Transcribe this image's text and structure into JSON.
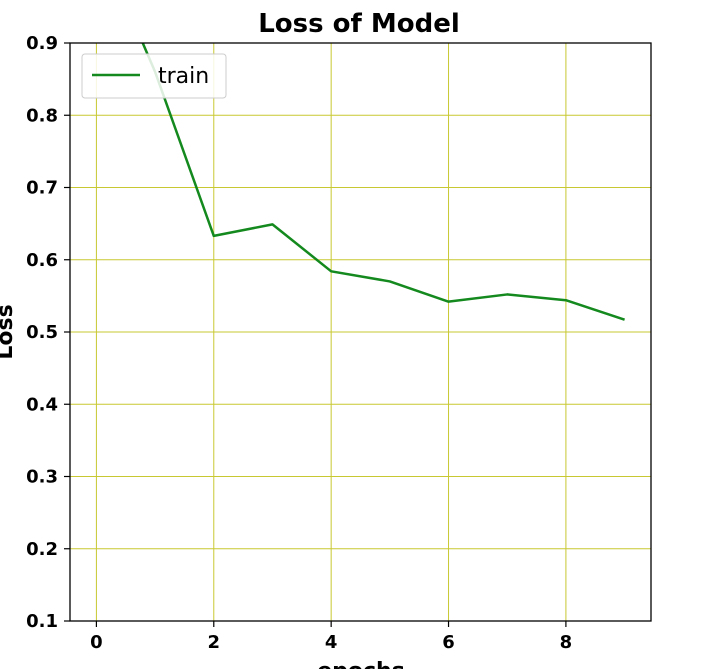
{
  "chart_data": {
    "type": "line",
    "title": "Loss of Model",
    "xlabel": "epochs",
    "ylabel": "Loss",
    "xlim": [
      -0.45,
      9.45
    ],
    "ylim": [
      0.1,
      0.9
    ],
    "xticks": [
      "0",
      "2",
      "4",
      "6",
      "8"
    ],
    "xtick_values": [
      0,
      2,
      4,
      6,
      8
    ],
    "yticks": [
      "0.1",
      "0.2",
      "0.3",
      "0.4",
      "0.5",
      "0.6",
      "0.7",
      "0.8",
      "0.9"
    ],
    "ytick_values": [
      0.1,
      0.2,
      0.3,
      0.4,
      0.5,
      0.6,
      0.7,
      0.8,
      0.9
    ],
    "grid": true,
    "grid_color": "#c8c832",
    "legend_position": "top-left",
    "series": [
      {
        "name": "train",
        "color": "#14891e",
        "x": [
          0,
          1,
          2,
          3,
          4,
          5,
          6,
          7,
          8,
          9
        ],
        "y": [
          1.05,
          0.86,
          0.633,
          0.649,
          0.584,
          0.57,
          0.542,
          0.552,
          0.544,
          0.517
        ]
      }
    ]
  }
}
